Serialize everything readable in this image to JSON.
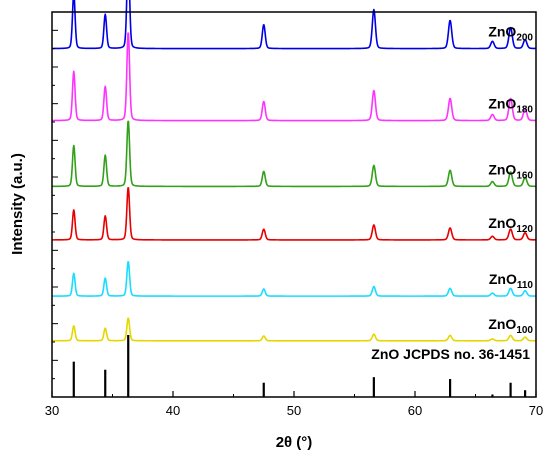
{
  "chart_data": {
    "type": "line",
    "title": "",
    "xlabel": "2θ (°)",
    "ylabel": "Intensity (a.u.)",
    "xlim": [
      30,
      70
    ],
    "x_ticks": [
      30,
      40,
      50,
      60,
      70
    ],
    "x_tick_labels": [
      "30",
      "40",
      "50",
      "60",
      "70"
    ],
    "y_tick_labels_shown": false,
    "grid": false,
    "legend": "none",
    "peak_positions": [
      31.8,
      34.4,
      36.3,
      47.5,
      56.6,
      62.9,
      66.4,
      67.9,
      69.1
    ],
    "series": [
      {
        "name": "ZnO200",
        "label_main": "ZnO",
        "label_sub": "200",
        "color": "#0000e6",
        "baseline": 0.905,
        "peak_heights": [
          0.92,
          0.57,
          1.55,
          0.4,
          0.65,
          0.47,
          0.12,
          0.35,
          0.15
        ]
      },
      {
        "name": "ZnO180",
        "label_main": "ZnO",
        "label_sub": "180",
        "color": "#ff33ff",
        "baseline": 0.718,
        "peak_heights": [
          0.82,
          0.57,
          1.48,
          0.32,
          0.5,
          0.37,
          0.1,
          0.37,
          0.2
        ]
      },
      {
        "name": "ZnO160",
        "label_main": "ZnO",
        "label_sub": "160",
        "color": "#33a01a",
        "baseline": 0.547,
        "peak_heights": [
          0.68,
          0.52,
          1.1,
          0.25,
          0.35,
          0.27,
          0.08,
          0.24,
          0.15
        ]
      },
      {
        "name": "ZnO120",
        "label_main": "ZnO",
        "label_sub": "120",
        "color": "#e60000",
        "baseline": 0.408,
        "peak_heights": [
          0.5,
          0.4,
          0.88,
          0.18,
          0.25,
          0.2,
          0.06,
          0.18,
          0.12
        ]
      },
      {
        "name": "ZnO110",
        "label_main": "ZnO",
        "label_sub": "110",
        "color": "#1adcff",
        "baseline": 0.262,
        "peak_heights": [
          0.38,
          0.3,
          0.58,
          0.12,
          0.16,
          0.13,
          0.05,
          0.13,
          0.09
        ]
      },
      {
        "name": "ZnO100",
        "label_main": "ZnO",
        "label_sub": "100",
        "color": "#e6d600",
        "baseline": 0.146,
        "peak_heights": [
          0.25,
          0.21,
          0.38,
          0.08,
          0.11,
          0.09,
          0.03,
          0.09,
          0.06
        ]
      }
    ],
    "reference": {
      "name": "ZnO JCPDS no. 36-1451",
      "color": "#000000",
      "sticks": [
        {
          "x": 31.8,
          "intensity": 0.57
        },
        {
          "x": 34.4,
          "intensity": 0.44
        },
        {
          "x": 36.3,
          "intensity": 1.0
        },
        {
          "x": 47.5,
          "intensity": 0.23
        },
        {
          "x": 56.6,
          "intensity": 0.32
        },
        {
          "x": 62.9,
          "intensity": 0.29
        },
        {
          "x": 66.4,
          "intensity": 0.04
        },
        {
          "x": 67.9,
          "intensity": 0.23
        },
        {
          "x": 69.1,
          "intensity": 0.11
        }
      ]
    }
  }
}
